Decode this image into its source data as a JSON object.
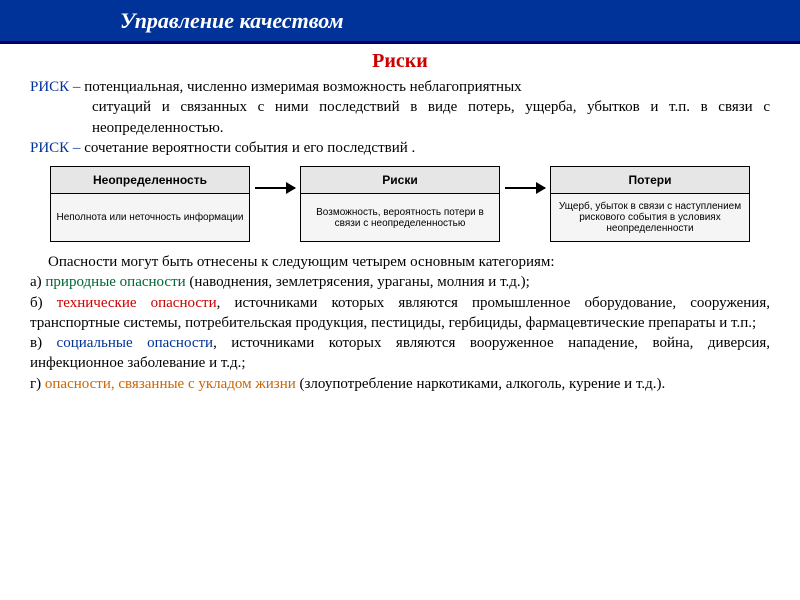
{
  "header": {
    "title": "Управление качеством"
  },
  "subtitle": "Риски",
  "def1": {
    "label": "РИСК – ",
    "line1": "потенциальная, численно измеримая возможность неблагоприятных",
    "line2": "ситуаций и связанных с ними последствий в виде потерь, ущерба, убытков и т.п. в связи с неопределенностью."
  },
  "def2": {
    "label": "РИСК – ",
    "text": "сочетание вероятности события и его последствий ."
  },
  "diagram": {
    "boxes": [
      {
        "head": "Неопределенность",
        "body": "Неполнота или неточность информации"
      },
      {
        "head": "Риски",
        "body": "Возможность, вероятность потери в связи с неопределенностью"
      },
      {
        "head": "Потери",
        "body": "Ущерб, убыток в связи с наступлением рискового события в условиях неопределенности"
      }
    ]
  },
  "categories": {
    "intro": "Опасности могут быть отнесены к следующим четырем основным категориям:",
    "items": [
      {
        "letter": "а) ",
        "name": "природные опасности",
        "rest": " (наводнения, землетрясения, ураганы, молния и т.д.);"
      },
      {
        "letter": "б) ",
        "name": "технические опасности",
        "rest": ", источниками которых являются промышленное оборудование, сооружения, транспортные системы, потребительская продукция, пестициды, гербициды, фармацевтические препараты и т.п.;"
      },
      {
        "letter": "в) ",
        "name": "социальные опасности",
        "rest": ", источниками которых являются вооруженное нападение, война, диверсия, инфекционное заболевание и т.д.;"
      },
      {
        "letter": "г) ",
        "name": "опасности, связанные с укладом жизни",
        "rest": " (злоупотребление наркотиками, алкоголь, курение и т.д.)."
      }
    ]
  },
  "colors": {
    "header_bg": "#003399",
    "subtitle": "#cc0000",
    "risk_label": "#003399",
    "box_head_bg": "#e6e6e6",
    "box_body_bg": "#f5f5f5",
    "cat_nat": "#006633",
    "cat_tech": "#cc0000",
    "cat_soc": "#003399",
    "cat_life": "#cc6600"
  }
}
